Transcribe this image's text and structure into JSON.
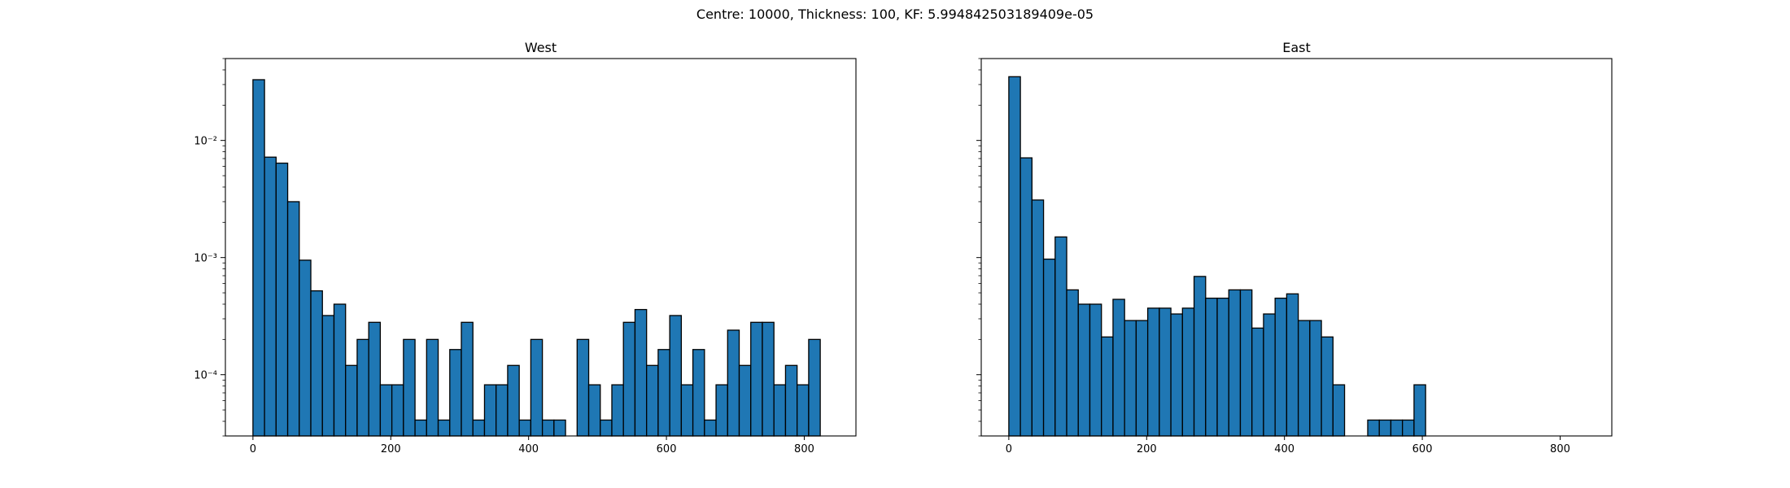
{
  "suptitle": "Centre: 10000, Thickness: 100, KF: 5.994842503189409e-05",
  "bar_color": "#1f77b4",
  "edge_color": "#000000",
  "chart_data": [
    {
      "type": "bar",
      "title": "West",
      "xlabel": "",
      "ylabel": "",
      "yscale": "log",
      "xlim": [
        -40,
        875
      ],
      "ylim": [
        3e-05,
        0.05
      ],
      "xticks": [
        0,
        200,
        400,
        600,
        800
      ],
      "yticks": [
        0.0001,
        0.001,
        0.01
      ],
      "ytick_labels": [
        "10⁻⁴",
        "10⁻³",
        "10⁻²"
      ],
      "bin_width": 16.8,
      "bin_start": 0,
      "values": [
        0.033,
        0.0072,
        0.0064,
        0.003,
        0.00095,
        0.00052,
        0.00032,
        0.0004,
        0.00012,
        0.0002,
        0.00028,
        8.2e-05,
        8.2e-05,
        0.0002,
        4.1e-05,
        0.0002,
        4.1e-05,
        0.000164,
        0.00028,
        4.1e-05,
        8.2e-05,
        8.2e-05,
        0.00012,
        4.1e-05,
        0.0002,
        4.1e-05,
        4.1e-05,
        0,
        0.0002,
        8.2e-05,
        4.1e-05,
        8.2e-05,
        0.00028,
        0.00036,
        0.00012,
        0.000164,
        0.00032,
        8.2e-05,
        0.000164,
        4.1e-05,
        8.2e-05,
        0.00024,
        0.00012,
        0.00028,
        0.00028,
        8.2e-05,
        0.00012,
        8.2e-05,
        0.0002
      ]
    },
    {
      "type": "bar",
      "title": "East",
      "xlabel": "",
      "ylabel": "",
      "yscale": "log",
      "xlim": [
        -40,
        875
      ],
      "ylim": [
        3e-05,
        0.05
      ],
      "xticks": [
        0,
        200,
        400,
        600,
        800
      ],
      "yticks": [
        0.0001,
        0.001,
        0.01
      ],
      "ytick_labels": [],
      "bin_width": 16.8,
      "bin_start": 0,
      "values": [
        0.035,
        0.0071,
        0.0031,
        0.00097,
        0.0015,
        0.00053,
        0.0004,
        0.0004,
        0.00021,
        0.00044,
        0.00029,
        0.00029,
        0.00037,
        0.00037,
        0.00033,
        0.00037,
        0.00069,
        0.00045,
        0.00045,
        0.00053,
        0.00053,
        0.00025,
        0.00033,
        0.00045,
        0.00049,
        0.00029,
        0.00029,
        0.00021,
        8.2e-05,
        0,
        0,
        4.1e-05,
        4.1e-05,
        4.1e-05,
        4.1e-05,
        8.2e-05,
        0,
        0,
        0,
        0,
        0,
        0,
        0,
        0,
        0,
        0,
        0,
        0,
        0
      ]
    }
  ]
}
